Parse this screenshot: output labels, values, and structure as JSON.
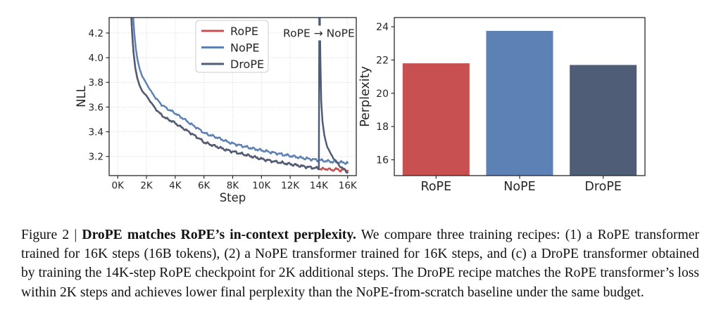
{
  "caption": {
    "prefix": "Figure 2 | ",
    "bold": "DroPE matches RoPE’s in-context perplexity.",
    "rest": " We compare three training recipes: (1) a RoPE transformer trained for 16K steps (16B tokens), (2) a NoPE transformer trained for 16K steps, and (c) a DroPE transformer obtained by training the 14K-step RoPE checkpoint for 2K additional steps. The DroPE recipe matches the RoPE transformer’s loss within 2K steps and achieves lower final perplexity than the NoPE-from-scratch baseline under the same budget."
  },
  "colors": {
    "rope": "#c85050",
    "nope": "#5e81b5",
    "drope": "#4f5d76",
    "grid": "#d4d4d4",
    "spine": "#2a2a2a",
    "text": "#262626"
  },
  "chart_data": [
    {
      "type": "line",
      "xlabel": "Step",
      "ylabel": "NLL",
      "xlim": [
        -0.6,
        16.6
      ],
      "ylim": [
        3.045,
        4.325
      ],
      "grid": true,
      "xticks": [
        {
          "v": 0,
          "label": "0K"
        },
        {
          "v": 2,
          "label": "2K"
        },
        {
          "v": 4,
          "label": "4K"
        },
        {
          "v": 6,
          "label": "6K"
        },
        {
          "v": 8,
          "label": "8K"
        },
        {
          "v": 10,
          "label": "10K"
        },
        {
          "v": 12,
          "label": "12K"
        },
        {
          "v": 14,
          "label": "14K"
        },
        {
          "v": 16,
          "label": "16K"
        }
      ],
      "yticks": [
        {
          "v": 3.2,
          "label": "3.2"
        },
        {
          "v": 3.4,
          "label": "3.4"
        },
        {
          "v": 3.6,
          "label": "3.6"
        },
        {
          "v": 3.8,
          "label": "3.8"
        },
        {
          "v": 4.0,
          "label": "4.0"
        },
        {
          "v": 4.2,
          "label": "4.2"
        }
      ],
      "legend": {
        "position": "upper-center-left",
        "entries": [
          "RoPE",
          "NoPE",
          "DroPE"
        ]
      },
      "annotation": {
        "text": "RoPE → NoPE",
        "x": 14,
        "y": 4.2
      },
      "series": [
        {
          "name": "RoPE",
          "color_key": "rope",
          "z": 2,
          "points": [
            [
              0.95,
              4.32
            ],
            [
              1.0,
              4.2
            ],
            [
              1.1,
              4.04
            ],
            [
              1.22,
              3.92
            ],
            [
              1.35,
              3.84
            ],
            [
              1.5,
              3.78
            ],
            [
              1.7,
              3.73
            ],
            [
              2.0,
              3.69
            ],
            [
              2.3,
              3.64
            ],
            [
              2.6,
              3.59
            ],
            [
              3.0,
              3.54
            ],
            [
              3.4,
              3.505
            ],
            [
              3.7,
              3.49
            ],
            [
              4.0,
              3.47
            ],
            [
              4.3,
              3.445
            ],
            [
              4.6,
              3.425
            ],
            [
              5.0,
              3.395
            ],
            [
              5.4,
              3.365
            ],
            [
              5.8,
              3.335
            ],
            [
              6.0,
              3.315
            ],
            [
              6.5,
              3.295
            ],
            [
              7.0,
              3.275
            ],
            [
              7.5,
              3.255
            ],
            [
              8.0,
              3.24
            ],
            [
              8.5,
              3.225
            ],
            [
              9.0,
              3.21
            ],
            [
              9.5,
              3.195
            ],
            [
              10.0,
              3.18
            ],
            [
              10.5,
              3.168
            ],
            [
              11.0,
              3.157
            ],
            [
              11.5,
              3.147
            ],
            [
              12.0,
              3.138
            ],
            [
              12.5,
              3.128
            ],
            [
              13.0,
              3.118
            ],
            [
              13.5,
              3.11
            ],
            [
              14.0,
              3.102
            ],
            [
              14.3,
              3.097
            ],
            [
              14.6,
              3.1
            ],
            [
              14.9,
              3.09
            ],
            [
              15.2,
              3.098
            ],
            [
              15.5,
              3.088
            ],
            [
              15.8,
              3.094
            ],
            [
              16.0,
              3.086
            ]
          ]
        },
        {
          "name": "NoPE",
          "color_key": "nope",
          "z": 1,
          "points": [
            [
              1.08,
              4.32
            ],
            [
              1.15,
              4.2
            ],
            [
              1.25,
              4.08
            ],
            [
              1.38,
              3.98
            ],
            [
              1.52,
              3.91
            ],
            [
              1.7,
              3.85
            ],
            [
              2.0,
              3.79
            ],
            [
              2.3,
              3.73
            ],
            [
              2.6,
              3.68
            ],
            [
              3.0,
              3.625
            ],
            [
              3.4,
              3.59
            ],
            [
              3.7,
              3.57
            ],
            [
              4.0,
              3.55
            ],
            [
              4.3,
              3.525
            ],
            [
              4.6,
              3.505
            ],
            [
              5.0,
              3.47
            ],
            [
              5.4,
              3.44
            ],
            [
              5.8,
              3.41
            ],
            [
              6.0,
              3.39
            ],
            [
              6.5,
              3.37
            ],
            [
              7.0,
              3.35
            ],
            [
              7.5,
              3.325
            ],
            [
              8.0,
              3.305
            ],
            [
              8.5,
              3.29
            ],
            [
              9.0,
              3.275
            ],
            [
              9.5,
              3.262
            ],
            [
              10.0,
              3.25
            ],
            [
              10.5,
              3.238
            ],
            [
              11.0,
              3.227
            ],
            [
              11.5,
              3.215
            ],
            [
              12.0,
              3.205
            ],
            [
              12.5,
              3.195
            ],
            [
              13.0,
              3.185
            ],
            [
              13.5,
              3.177
            ],
            [
              14.0,
              3.17
            ],
            [
              14.5,
              3.163
            ],
            [
              15.0,
              3.157
            ],
            [
              15.5,
              3.152
            ],
            [
              16.0,
              3.148
            ]
          ]
        },
        {
          "name": "DroPE",
          "color_key": "drope",
          "z": 3,
          "points": [
            [
              0.95,
              4.32
            ],
            [
              1.0,
              4.2
            ],
            [
              1.1,
              4.04
            ],
            [
              1.22,
              3.92
            ],
            [
              1.35,
              3.84
            ],
            [
              1.5,
              3.78
            ],
            [
              1.7,
              3.73
            ],
            [
              2.0,
              3.69
            ],
            [
              2.3,
              3.64
            ],
            [
              2.6,
              3.59
            ],
            [
              3.0,
              3.54
            ],
            [
              3.4,
              3.505
            ],
            [
              3.7,
              3.49
            ],
            [
              4.0,
              3.47
            ],
            [
              4.3,
              3.445
            ],
            [
              4.6,
              3.425
            ],
            [
              5.0,
              3.395
            ],
            [
              5.4,
              3.365
            ],
            [
              5.8,
              3.335
            ],
            [
              6.0,
              3.315
            ],
            [
              6.5,
              3.295
            ],
            [
              7.0,
              3.275
            ],
            [
              7.5,
              3.255
            ],
            [
              8.0,
              3.24
            ],
            [
              8.5,
              3.225
            ],
            [
              9.0,
              3.21
            ],
            [
              9.5,
              3.195
            ],
            [
              10.0,
              3.18
            ],
            [
              10.5,
              3.168
            ],
            [
              11.0,
              3.157
            ],
            [
              11.5,
              3.147
            ],
            [
              12.0,
              3.138
            ],
            [
              12.5,
              3.128
            ],
            [
              13.0,
              3.118
            ],
            [
              13.5,
              3.11
            ],
            [
              14.0,
              3.102
            ],
            [
              14.03,
              4.6
            ],
            [
              14.1,
              4.0
            ],
            [
              14.16,
              3.65
            ],
            [
              14.25,
              3.48
            ],
            [
              14.38,
              3.37
            ],
            [
              14.55,
              3.29
            ],
            [
              14.75,
              3.235
            ],
            [
              15.0,
              3.19
            ],
            [
              15.2,
              3.158
            ],
            [
              15.4,
              3.13
            ],
            [
              15.6,
              3.108
            ],
            [
              15.8,
              3.09
            ],
            [
              16.0,
              3.07
            ]
          ]
        }
      ]
    },
    {
      "type": "bar",
      "ylabel": "Perplexity",
      "categories": [
        "RoPE",
        "NoPE",
        "DroPE"
      ],
      "values": [
        21.8,
        23.75,
        21.7
      ],
      "bar_colors": [
        "rope",
        "nope",
        "drope"
      ],
      "ylim": [
        15.05,
        24.55
      ],
      "grid": false,
      "yticks": [
        {
          "v": 16,
          "label": "16"
        },
        {
          "v": 18,
          "label": "18"
        },
        {
          "v": 20,
          "label": "20"
        },
        {
          "v": 22,
          "label": "22"
        },
        {
          "v": 24,
          "label": "24"
        }
      ]
    }
  ]
}
